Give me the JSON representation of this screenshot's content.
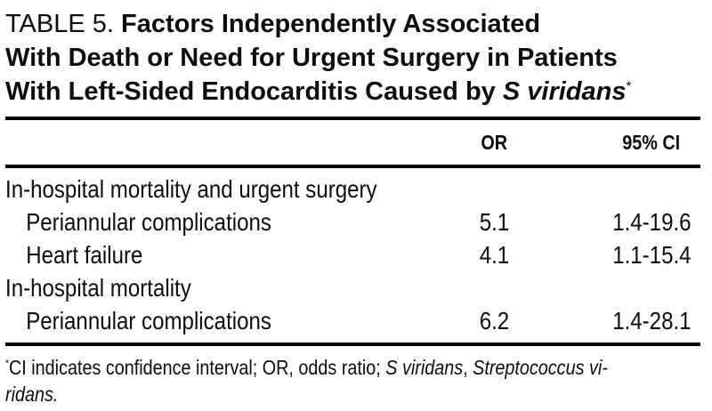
{
  "title": {
    "label": "TABLE 5.",
    "line1_rest": "Factors Independently Associated",
    "line2": "With Death or Need for Urgent Surgery in Patients",
    "line3_prefix": "With Left-Sided Endocarditis Caused by ",
    "line3_species": "S viridans",
    "footnote_marker": "*"
  },
  "table": {
    "columns": {
      "factor": "",
      "or": "OR",
      "ci": "95% CI"
    },
    "rows": [
      {
        "label": "In-hospital mortality and urgent surgery",
        "or": "",
        "ci": ""
      },
      {
        "label": "Periannular complications",
        "or": "5.1",
        "ci": "1.4-19.6"
      },
      {
        "label": "Heart failure",
        "or": "4.1",
        "ci": "1.1-15.4"
      },
      {
        "label": "In-hospital mortality",
        "or": "",
        "ci": ""
      },
      {
        "label": "Periannular complications",
        "or": "6.2",
        "ci": "1.4-28.1"
      }
    ]
  },
  "footnote": {
    "marker": "*",
    "line1_text": "CI indicates confidence interval; OR, odds ratio; ",
    "line1_italic1": "S viridans",
    "line1_sep": ", ",
    "line1_italic2": "Streptococcus vi-",
    "line2_italic": "ridans."
  },
  "colors": {
    "background": "#ffffff",
    "text": "#0d0d0d",
    "rule": "#000000"
  }
}
